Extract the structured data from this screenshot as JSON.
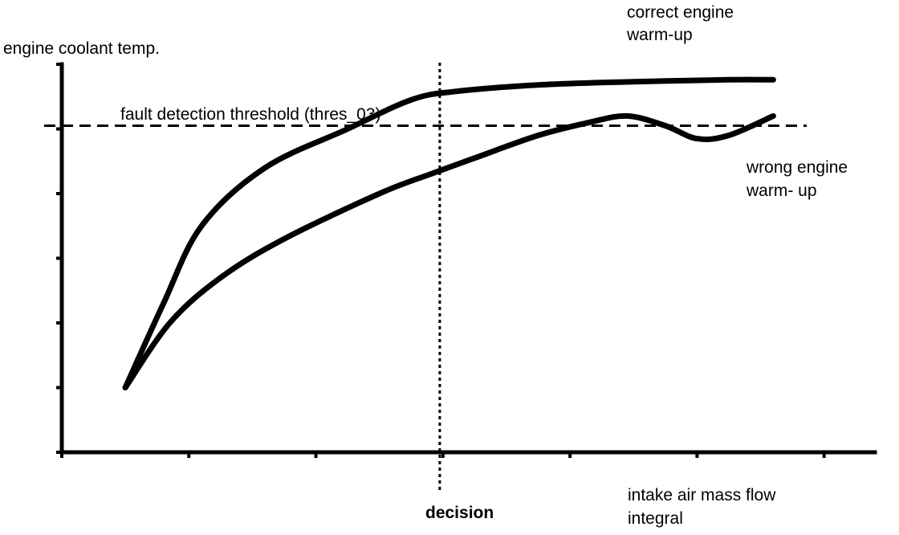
{
  "chart_data": {
    "type": "line",
    "title": "",
    "ylabel": "engine coolant temp.",
    "xlabel": [
      "intake air mass flow",
      "integral"
    ],
    "xlim": [
      0,
      12.8
    ],
    "ylim": [
      0,
      6
    ],
    "x_ticks": [
      0,
      2,
      4,
      6,
      8,
      10,
      12
    ],
    "y_ticks": [
      0,
      1,
      2,
      3,
      4,
      5,
      6
    ],
    "grid": false,
    "threshold": {
      "label": "fault detection threshold (thres_03)",
      "y": 5.05
    },
    "decision": {
      "label": "decision",
      "x": 5.95
    },
    "series": [
      {
        "name": [
          "correct engine",
          "warm-up"
        ],
        "x": [
          1,
          1.6,
          2.2,
          3.2,
          4.5,
          5.5,
          6.2,
          7.5,
          9,
          10.5,
          11.2
        ],
        "y": [
          1,
          2.3,
          3.5,
          4.4,
          5.0,
          5.45,
          5.58,
          5.68,
          5.73,
          5.76,
          5.76
        ]
      },
      {
        "name": [
          "wrong engine",
          "warm- up"
        ],
        "x": [
          1,
          1.7,
          2.5,
          3.5,
          5.0,
          5.8,
          6.5,
          7.5,
          8.3,
          8.9,
          9.5,
          10.0,
          10.5,
          11.2
        ],
        "y": [
          1,
          2.0,
          2.7,
          3.3,
          4.0,
          4.3,
          4.55,
          4.9,
          5.1,
          5.2,
          5.05,
          4.85,
          4.9,
          5.2
        ]
      }
    ]
  }
}
